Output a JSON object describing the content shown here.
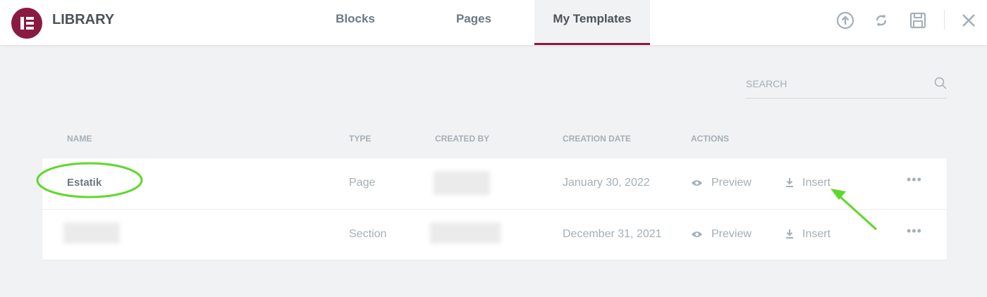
{
  "header": {
    "title": "LIBRARY",
    "tabs": [
      {
        "label": "Blocks"
      },
      {
        "label": "Pages"
      },
      {
        "label": "My Templates",
        "active": true
      }
    ],
    "icons": [
      "upload-icon",
      "sync-icon",
      "save-icon",
      "close-icon"
    ]
  },
  "search": {
    "placeholder": "SEARCH"
  },
  "table": {
    "columns": [
      "Name",
      "Type",
      "Created By",
      "Creation Date",
      "Actions"
    ],
    "rows": [
      {
        "name": "Estatik",
        "type": "Page",
        "date": "January 30, 2022",
        "preview": "Preview",
        "insert": "Insert"
      },
      {
        "name": "",
        "type": "Section",
        "date": "December 31, 2021",
        "preview": "Preview",
        "insert": "Insert"
      }
    ]
  },
  "colors": {
    "brand": "#8a1a3f",
    "annotation": "#5fd82a"
  }
}
